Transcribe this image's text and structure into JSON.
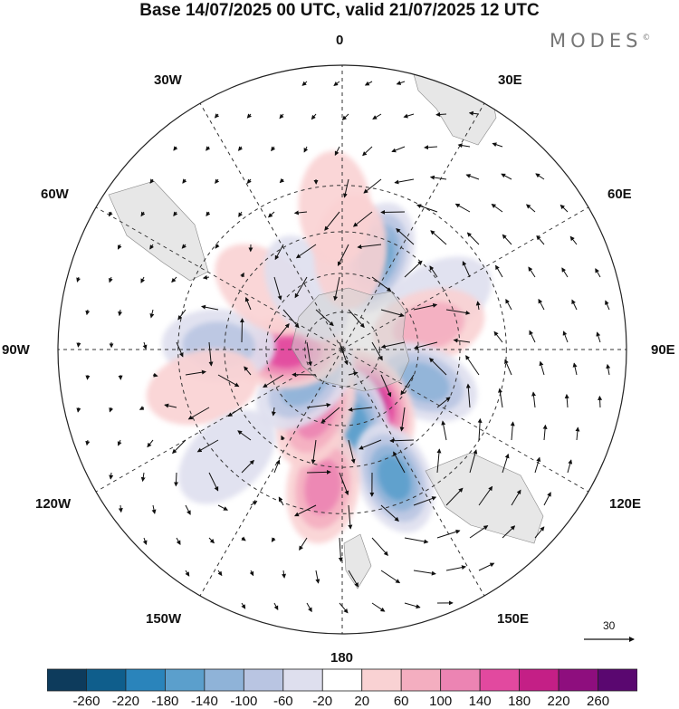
{
  "title": "Base 14/07/2025 00 UTC, valid 21/07/2025 12 UTC",
  "brand": "MODES",
  "brand_mark": "©",
  "lon_labels": {
    "l0": "0",
    "l30e": "30E",
    "l60e": "60E",
    "l90e": "90E",
    "l120e": "120E",
    "l150e": "150E",
    "l180": "180",
    "l150w": "150W",
    "l120w": "120W",
    "l90w": "90W",
    "l60w": "60W",
    "l30w": "30W"
  },
  "reference_vector": "30",
  "colorbar": {
    "ticks": [
      "-260",
      "-220",
      "-180",
      "-140",
      "-100",
      "-60",
      "-20",
      "20",
      "60",
      "100",
      "140",
      "180",
      "220",
      "260"
    ],
    "colors": [
      "#0d3b5c",
      "#0f5e8c",
      "#2a84bb",
      "#5b9fcc",
      "#8fb3d8",
      "#b9c5e2",
      "#dedfee",
      "#ffffff",
      "#f9d2d3",
      "#f4aec0",
      "#ec84b3",
      "#e2499f",
      "#c41f86",
      "#8e0e7e",
      "#5a0770"
    ]
  },
  "anomalies": [
    {
      "lon": 20,
      "lat": -52,
      "value": -170
    },
    {
      "lon": 62,
      "lat": -48,
      "value": -60
    },
    {
      "lon": 75,
      "lat": -55,
      "value": 110
    },
    {
      "lon": 112,
      "lat": -56,
      "value": -150
    },
    {
      "lon": 150,
      "lat": -66,
      "value": 210
    },
    {
      "lon": 172,
      "lat": -60,
      "value": -170
    },
    {
      "lon": 158,
      "lat": -38,
      "value": -190
    },
    {
      "lon": -172,
      "lat": -38,
      "value": 120
    },
    {
      "lon": -157,
      "lat": -63,
      "value": 120
    },
    {
      "lon": -132,
      "lat": -70,
      "value": -150
    },
    {
      "lon": -93,
      "lat": -68,
      "value": 160
    },
    {
      "lon": -88,
      "lat": -43,
      "value": -90
    },
    {
      "lon": -105,
      "lat": -36,
      "value": 70
    },
    {
      "lon": -133,
      "lat": -32,
      "value": -60
    },
    {
      "lon": -52,
      "lat": -52,
      "value": 40
    },
    {
      "lon": -30,
      "lat": -62,
      "value": -60
    },
    {
      "lon": 5,
      "lat": -52,
      "value": 60
    },
    {
      "lon": -3,
      "lat": -37,
      "value": 50
    }
  ]
}
